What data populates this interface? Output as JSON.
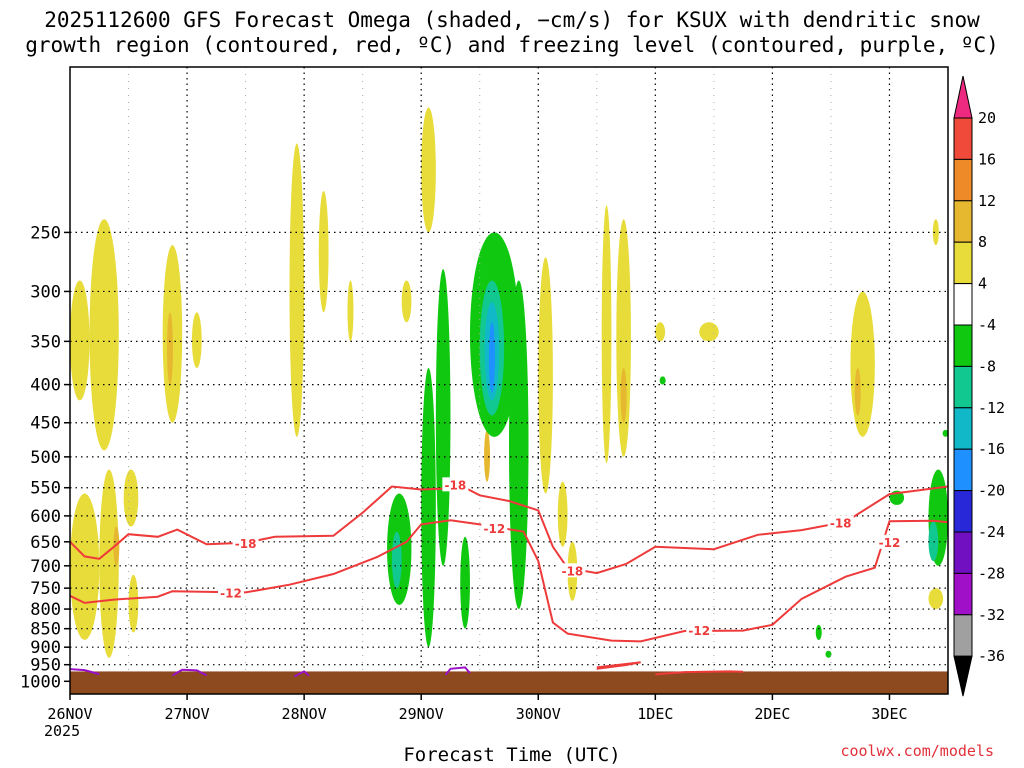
{
  "title_line1": "2025112600 GFS Forecast Omega (shaded, −cm/s) for KSUX with dendritic snow",
  "title_line2": "growth region (contoured, red, ºC) and freezing level (contoured, purple, ºC)",
  "xlabel": "Forecast Time (UTC)",
  "credit": "coolwx.com/models",
  "colors": {
    "dgz_contour": "#ee3a3a",
    "freezing_level": "#9a10c8",
    "ground": "#8e4a1f",
    "grid": "#000000"
  },
  "chart_data": {
    "type": "heatmap",
    "title": "2025112600 GFS Forecast Omega (shaded, −cm/s) for KSUX with dendritic snow growth region (contoured, red, ºC) and freezing level (contoured, purple, ºC)",
    "xlabel": "Forecast Time (UTC)",
    "ylabel": "",
    "x_axis": {
      "type": "time",
      "start": "2025-11-26T00",
      "end": "2025-12-03T12",
      "ticks": [
        "26NOV",
        "27NOV",
        "28NOV",
        "29NOV",
        "30NOV",
        "1DEC",
        "2DEC",
        "3DEC"
      ],
      "year_label": "2025"
    },
    "y_axis": {
      "units": "hPa",
      "inverted": true,
      "range": [
        1040,
        150
      ],
      "ticks": [
        250,
        300,
        350,
        400,
        450,
        500,
        550,
        600,
        650,
        700,
        750,
        800,
        850,
        900,
        950,
        1000
      ]
    },
    "grid": true,
    "colorbar": {
      "levels": [
        "20",
        "16",
        "12",
        "8",
        "4",
        "-4",
        "-8",
        "-12",
        "-16",
        "-20",
        "-24",
        "-28",
        "-32",
        "-36"
      ],
      "colors": [
        "#ee2a80",
        "#f04a3a",
        "#ee8a28",
        "#e6b830",
        "#e8dc3a",
        "#ffffff",
        "#10c810",
        "#10c890",
        "#10b8c8",
        "#1e90ff",
        "#2828d8",
        "#7010c0",
        "#a010c8",
        "#a0a0a0",
        "#000000"
      ]
    },
    "contours": [
      {
        "kind": "dgz",
        "label": "-18",
        "label_points": [
          [
            "2025-11-27T12",
            654
          ],
          [
            "2025-11-29T07",
            546
          ],
          [
            "2025-11-30T07",
            712
          ],
          [
            "2025-12-02T14",
            614
          ]
        ],
        "points": [
          [
            "2025-11-26T00",
            650
          ],
          [
            "2025-11-26T03",
            680
          ],
          [
            "2025-11-26T06",
            685
          ],
          [
            "2025-11-26T09",
            660
          ],
          [
            "2025-11-26T12",
            635
          ],
          [
            "2025-11-26T18",
            640
          ],
          [
            "2025-11-26T22",
            626
          ],
          [
            "2025-11-27T04",
            655
          ],
          [
            "2025-11-27T12",
            652
          ],
          [
            "2025-11-27T18",
            640
          ],
          [
            "2025-11-28T06",
            638
          ],
          [
            "2025-11-28T12",
            594
          ],
          [
            "2025-11-28T18",
            548
          ],
          [
            "2025-11-29T00",
            553
          ],
          [
            "2025-11-29T09",
            550
          ],
          [
            "2025-11-29T12",
            563
          ],
          [
            "2025-11-29T18",
            573
          ],
          [
            "2025-11-30T00",
            590
          ],
          [
            "2025-11-30T03",
            660
          ],
          [
            "2025-11-30T06",
            705
          ],
          [
            "2025-11-30T12",
            716
          ],
          [
            "2025-11-30T18",
            696
          ],
          [
            "2025-12-01T00",
            660
          ],
          [
            "2025-12-01T12",
            665
          ],
          [
            "2025-12-01T21",
            636
          ],
          [
            "2025-12-02T06",
            627
          ],
          [
            "2025-12-02T15",
            611
          ],
          [
            "2025-12-03T00",
            561
          ],
          [
            "2025-12-03T12",
            548
          ]
        ]
      },
      {
        "kind": "dgz",
        "label": "-12",
        "label_points": [
          [
            "2025-11-27T09",
            762
          ],
          [
            "2025-11-29T15",
            625
          ],
          [
            "2025-12-01T09",
            856
          ],
          [
            "2025-12-03T00",
            652
          ]
        ],
        "points": [
          [
            "2025-11-26T00",
            768
          ],
          [
            "2025-11-26T03",
            785
          ],
          [
            "2025-11-26T09",
            777
          ],
          [
            "2025-11-26T18",
            770
          ],
          [
            "2025-11-26T21",
            757
          ],
          [
            "2025-11-27T06",
            759
          ],
          [
            "2025-11-27T12",
            760
          ],
          [
            "2025-11-27T21",
            742
          ],
          [
            "2025-11-28T06",
            718
          ],
          [
            "2025-11-28T15",
            681
          ],
          [
            "2025-11-28T21",
            650
          ],
          [
            "2025-11-29T00",
            616
          ],
          [
            "2025-11-29T06",
            608
          ],
          [
            "2025-11-29T12",
            616
          ],
          [
            "2025-11-29T21",
            630
          ],
          [
            "2025-11-30T00",
            690
          ],
          [
            "2025-11-30T03",
            834
          ],
          [
            "2025-11-30T06",
            863
          ],
          [
            "2025-11-30T15",
            882
          ],
          [
            "2025-11-30T21",
            884
          ],
          [
            "2025-12-01T06",
            856
          ],
          [
            "2025-12-01T18",
            855
          ],
          [
            "2025-12-02T00",
            840
          ],
          [
            "2025-12-02T06",
            775
          ],
          [
            "2025-12-02T15",
            724
          ],
          [
            "2025-12-02T21",
            704
          ],
          [
            "2025-12-03T00",
            610
          ],
          [
            "2025-12-03T09",
            609
          ],
          [
            "2025-12-03T12",
            612
          ]
        ]
      },
      {
        "kind": "dgz",
        "label": "",
        "points": [
          [
            "2025-11-30T12",
            962
          ],
          [
            "2025-11-30T18",
            951
          ],
          [
            "2025-11-30T21",
            943
          ],
          [
            "2025-11-30T12",
            958
          ]
        ]
      },
      {
        "kind": "dgz",
        "label": "",
        "points": [
          [
            "2025-12-01T00",
            979
          ],
          [
            "2025-12-01T06",
            972
          ],
          [
            "2025-12-01T15",
            970
          ],
          [
            "2025-12-01T18",
            971
          ]
        ]
      },
      {
        "kind": "freezing",
        "label": "",
        "points": [
          [
            "2025-11-26T00",
            963
          ],
          [
            "2025-11-26T03",
            966
          ],
          [
            "2025-11-26T06",
            978
          ]
        ]
      },
      {
        "kind": "freezing",
        "label": "",
        "points": [
          [
            "2025-11-26T21",
            982
          ],
          [
            "2025-11-26T23",
            965
          ],
          [
            "2025-11-27T02",
            967
          ],
          [
            "2025-11-27T04",
            982
          ]
        ]
      },
      {
        "kind": "freezing",
        "label": "",
        "points": [
          [
            "2025-11-27T22",
            985
          ],
          [
            "2025-11-28T00",
            970
          ],
          [
            "2025-11-28T01",
            983
          ]
        ]
      },
      {
        "kind": "freezing",
        "label": "",
        "points": [
          [
            "2025-11-29T05",
            980
          ],
          [
            "2025-11-29T06",
            962
          ],
          [
            "2025-11-29T09",
            958
          ],
          [
            "2025-11-29T10",
            975
          ]
        ]
      }
    ],
    "regions": [
      {
        "level": "4",
        "t0": "2025-11-26T00",
        "t1": "2025-11-26T04",
        "p0": 420,
        "p1": 290
      },
      {
        "level": "4",
        "t0": "2025-11-26T04",
        "t1": "2025-11-26T10",
        "p0": 490,
        "p1": 240
      },
      {
        "level": "4",
        "t0": "2025-11-26T00",
        "t1": "2025-11-26T06",
        "p0": 880,
        "p1": 560
      },
      {
        "level": "4",
        "t0": "2025-11-26T06",
        "t1": "2025-11-26T10",
        "p0": 930,
        "p1": 520
      },
      {
        "level": "8",
        "t0": "2025-11-26T09",
        "t1": "2025-11-26T10",
        "p0": 700,
        "p1": 620
      },
      {
        "level": "4",
        "t0": "2025-11-26T11",
        "t1": "2025-11-26T14",
        "p0": 620,
        "p1": 520
      },
      {
        "level": "4",
        "t0": "2025-11-26T12",
        "t1": "2025-11-26T14",
        "p0": 860,
        "p1": 720
      },
      {
        "level": "4",
        "t0": "2025-11-26T19",
        "t1": "2025-11-26T23",
        "p0": 450,
        "p1": 260
      },
      {
        "level": "8",
        "t0": "2025-11-26T20",
        "t1": "2025-11-26T21",
        "p0": 400,
        "p1": 320
      },
      {
        "level": "4",
        "t0": "2025-11-27T01",
        "t1": "2025-11-27T03",
        "p0": 380,
        "p1": 320
      },
      {
        "level": "4",
        "t0": "2025-11-27T21",
        "t1": "2025-11-28T00",
        "p0": 470,
        "p1": 190
      },
      {
        "level": "4",
        "t0": "2025-11-28T03",
        "t1": "2025-11-28T05",
        "p0": 320,
        "p1": 220
      },
      {
        "level": "4",
        "t0": "2025-11-28T09",
        "t1": "2025-11-28T10",
        "p0": 350,
        "p1": 290
      },
      {
        "level": "4",
        "t0": "2025-11-28T20",
        "t1": "2025-11-28T22",
        "p0": 330,
        "p1": 290
      },
      {
        "level": "4",
        "t0": "2025-11-29T00",
        "t1": "2025-11-29T03",
        "p0": 250,
        "p1": 170
      },
      {
        "level": "8",
        "t0": "2025-11-29T13",
        "t1": "2025-11-29T14",
        "p0": 540,
        "p1": 460
      },
      {
        "level": "4",
        "t0": "2025-11-30T00",
        "t1": "2025-11-30T03",
        "p0": 560,
        "p1": 270
      },
      {
        "level": "4",
        "t0": "2025-11-30T04",
        "t1": "2025-11-30T06",
        "p0": 660,
        "p1": 540
      },
      {
        "level": "4",
        "t0": "2025-11-30T06",
        "t1": "2025-11-30T08",
        "p0": 780,
        "p1": 650
      },
      {
        "level": "4",
        "t0": "2025-11-30T13",
        "t1": "2025-11-30T15",
        "p0": 510,
        "p1": 230
      },
      {
        "level": "4",
        "t0": "2025-11-30T16",
        "t1": "2025-11-30T19",
        "p0": 500,
        "p1": 240
      },
      {
        "level": "8",
        "t0": "2025-11-30T17",
        "t1": "2025-11-30T18",
        "p0": 450,
        "p1": 380
      },
      {
        "level": "4",
        "t0": "2025-12-01T00",
        "t1": "2025-12-01T02",
        "p0": 350,
        "p1": 330
      },
      {
        "level": "4",
        "t0": "2025-12-01T09",
        "t1": "2025-12-01T13",
        "p0": 350,
        "p1": 330
      },
      {
        "level": "4",
        "t0": "2025-12-02T16",
        "t1": "2025-12-02T21",
        "p0": 470,
        "p1": 300
      },
      {
        "level": "8",
        "t0": "2025-12-02T17",
        "t1": "2025-12-02T18",
        "p0": 440,
        "p1": 380
      },
      {
        "level": "4",
        "t0": "2025-12-03T09",
        "t1": "2025-12-03T10",
        "p0": 260,
        "p1": 240
      },
      {
        "level": "4",
        "t0": "2025-12-03T08",
        "t1": "2025-12-03T11",
        "p0": 800,
        "p1": 750
      },
      {
        "level": "-4",
        "t0": "2025-11-28T17",
        "t1": "2025-11-28T22",
        "p0": 790,
        "p1": 560
      },
      {
        "level": "-8",
        "t0": "2025-11-28T18",
        "t1": "2025-11-28T20",
        "p0": 750,
        "p1": 630
      },
      {
        "level": "-4",
        "t0": "2025-11-29T00",
        "t1": "2025-11-29T03",
        "p0": 900,
        "p1": 380
      },
      {
        "level": "-4",
        "t0": "2025-11-29T03",
        "t1": "2025-11-29T06",
        "p0": 700,
        "p1": 280
      },
      {
        "level": "-4",
        "t0": "2025-11-29T08",
        "t1": "2025-11-29T10",
        "p0": 850,
        "p1": 640
      },
      {
        "level": "-4",
        "t0": "2025-11-29T10",
        "t1": "2025-11-29T20",
        "p0": 470,
        "p1": 250
      },
      {
        "level": "-8",
        "t0": "2025-11-29T12",
        "t1": "2025-11-29T17",
        "p0": 440,
        "p1": 290
      },
      {
        "level": "-12",
        "t0": "2025-11-29T13",
        "t1": "2025-11-29T16",
        "p0": 420,
        "p1": 310
      },
      {
        "level": "-16",
        "t0": "2025-11-29T14",
        "t1": "2025-11-29T15",
        "p0": 410,
        "p1": 330
      },
      {
        "level": "-4",
        "t0": "2025-11-29T18",
        "t1": "2025-11-29T22",
        "p0": 800,
        "p1": 290
      },
      {
        "level": "-4",
        "t0": "2025-12-01T01",
        "t1": "2025-12-01T02",
        "p0": 400,
        "p1": 390
      },
      {
        "level": "-4",
        "t0": "2025-12-02T09",
        "t1": "2025-12-02T10",
        "p0": 880,
        "p1": 840
      },
      {
        "level": "-4",
        "t0": "2025-12-02T11",
        "t1": "2025-12-02T12",
        "p0": 930,
        "p1": 910
      },
      {
        "level": "-4",
        "t0": "2025-12-03T00",
        "t1": "2025-12-03T03",
        "p0": 580,
        "p1": 555
      },
      {
        "level": "-4",
        "t0": "2025-12-03T08",
        "t1": "2025-12-03T12",
        "p0": 700,
        "p1": 520
      },
      {
        "level": "-8",
        "t0": "2025-12-03T08",
        "t1": "2025-12-03T10",
        "p0": 690,
        "p1": 610
      },
      {
        "level": "-4",
        "t0": "2025-12-03T11",
        "t1": "2025-12-03T12",
        "p0": 470,
        "p1": 460
      }
    ],
    "surface": {
      "level_hpa": 970
    }
  }
}
